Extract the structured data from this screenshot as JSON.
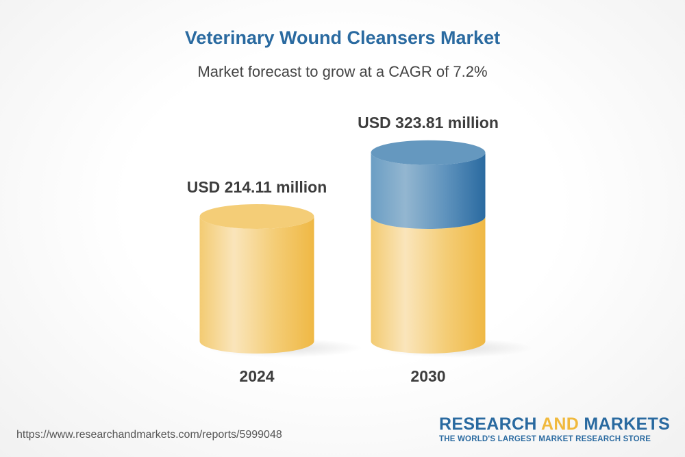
{
  "chart_data": {
    "type": "bar",
    "style": "3d-cylinder",
    "title": "Veterinary Wound Cleansers Market",
    "subtitle": "Market forecast to grow at a CAGR of 7.2%",
    "categories": [
      "2024",
      "2030"
    ],
    "values": [
      214.11,
      323.81
    ],
    "data_labels": [
      "USD 214.11 million",
      "USD 323.81 million"
    ],
    "unit": "USD million",
    "colors": {
      "base": "#f2c35f",
      "growth": "#2a6aa0"
    }
  },
  "footer": {
    "url": "https://www.researchandmarkets.com/reports/5999048",
    "logo_word1": "RESEARCH",
    "logo_word2": "AND",
    "logo_word3": "MARKETS",
    "tagline": "THE WORLD'S LARGEST MARKET RESEARCH STORE"
  }
}
